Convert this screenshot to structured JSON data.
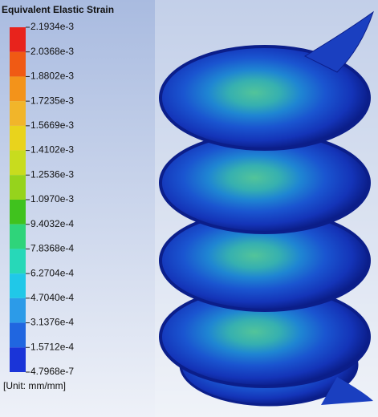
{
  "legend": {
    "title": "Equivalent Elastic Strain",
    "labels": [
      "2.1934e-3",
      "2.0368e-3",
      "1.8802e-3",
      "1.7235e-3",
      "1.5669e-3",
      "1.4102e-3",
      "1.2536e-3",
      "1.0970e-3",
      "9.4032e-4",
      "7.8368e-4",
      "6.2704e-4",
      "4.7040e-4",
      "3.1376e-4",
      "1.5712e-4",
      "4.7968e-7"
    ],
    "colors": [
      "#e8231c",
      "#f05a14",
      "#f3931a",
      "#f1b52a",
      "#e9d31c",
      "#c8dc1e",
      "#96d31c",
      "#40c21e",
      "#2fd47a",
      "#27d8b8",
      "#20c8e8",
      "#2c9be8",
      "#2066e0",
      "#1a34d8"
    ],
    "unit": "[Unit: mm/mm]"
  }
}
